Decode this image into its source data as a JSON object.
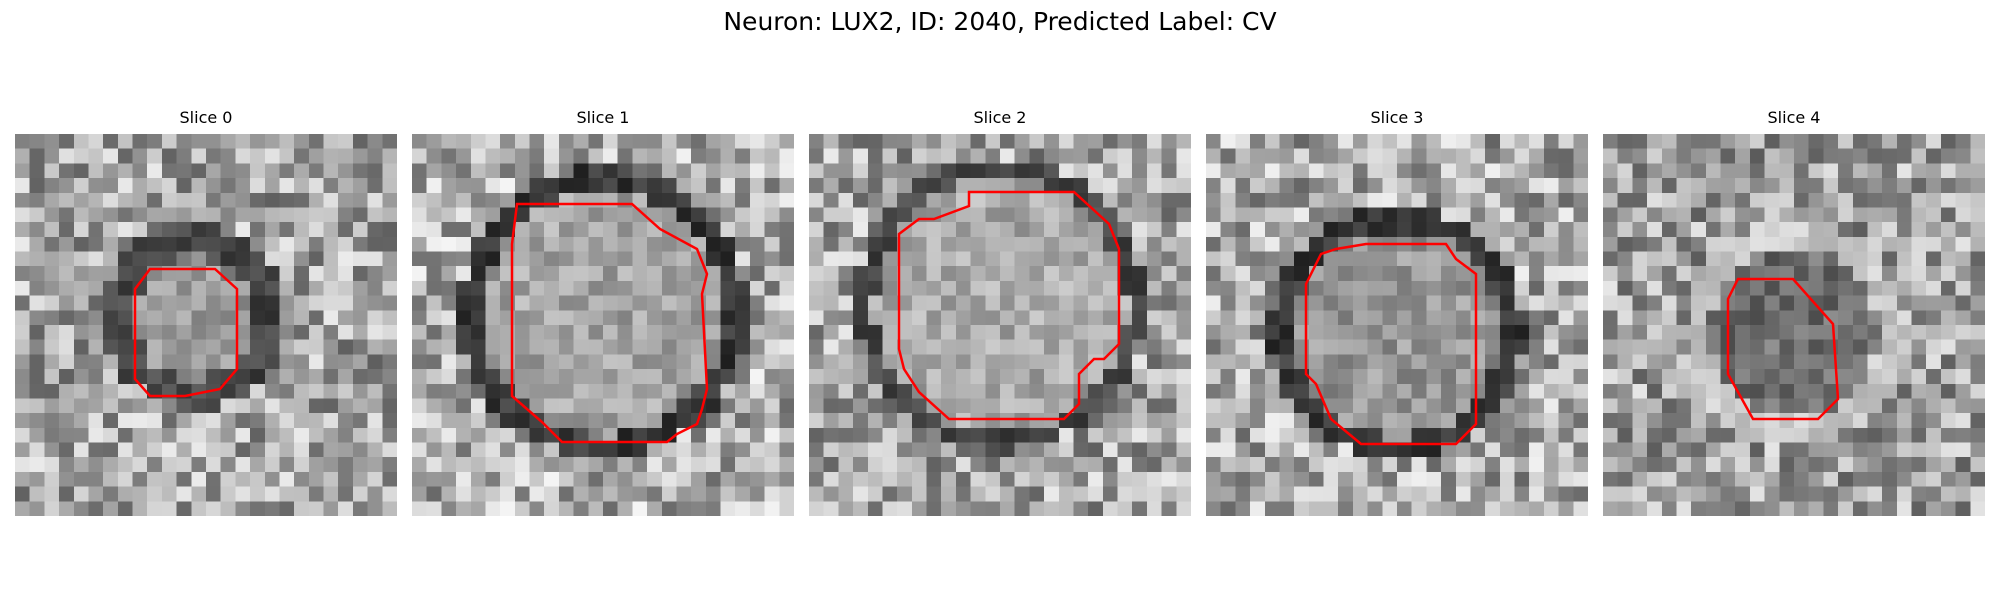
{
  "figure": {
    "title": "Neuron: LUX2, ID: 2040, Predicted Label: CV"
  },
  "colors": {
    "contour": "#ff0000",
    "background": "#ffffff"
  },
  "panels": [
    {
      "label": "Slice 0",
      "image": "grayscale-em-patch-small-round-cell"
    },
    {
      "label": "Slice 1",
      "image": "grayscale-em-patch-round-cell-dark-membrane"
    },
    {
      "label": "Slice 2",
      "image": "grayscale-em-patch-round-cell-speckled"
    },
    {
      "label": "Slice 3",
      "image": "grayscale-em-patch-round-cell-dark-ring"
    },
    {
      "label": "Slice 4",
      "image": "grayscale-em-patch-small-dark-cell"
    }
  ]
}
